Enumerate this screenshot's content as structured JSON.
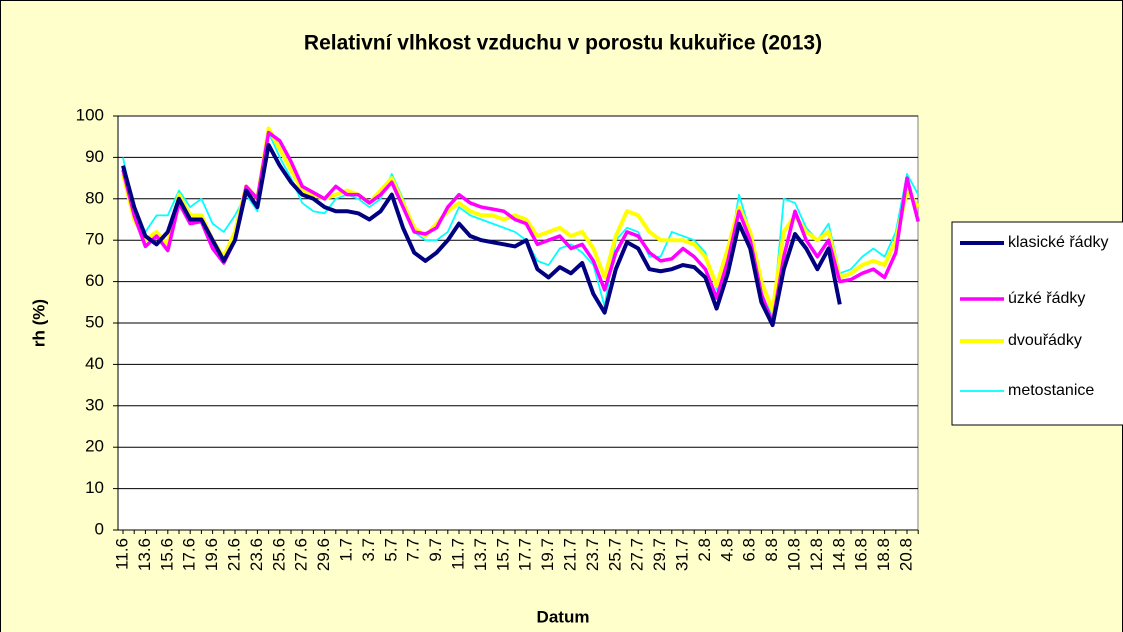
{
  "chart_data": {
    "type": "line",
    "title": "Relativní vlhkost vzduchu v porostu kukuřice (2013)",
    "x_label": "Datum",
    "y_label": "rh (%)",
    "categories": [
      "11.6",
      null,
      "13.6",
      null,
      "15.6",
      null,
      "17.6",
      null,
      "19.6",
      null,
      "21.6",
      null,
      "23.6",
      null,
      "25.6",
      null,
      "27.6",
      null,
      "29.6",
      null,
      "1.7",
      null,
      "3.7",
      null,
      "5.7",
      null,
      "7.7",
      null,
      "9.7",
      null,
      "11.7",
      null,
      "13.7",
      null,
      "15.7",
      null,
      "17.7",
      null,
      "19.7",
      null,
      "21.7",
      null,
      "23.7",
      null,
      "25.7",
      null,
      "27.7",
      null,
      "29.7",
      null,
      "31.7",
      null,
      "2.8",
      null,
      "4.8",
      null,
      "6.8",
      null,
      "8.8",
      null,
      "10.8",
      null,
      "12.8",
      null,
      "14.8",
      null,
      "16.8",
      null,
      "18.8",
      null,
      "20.8",
      null
    ],
    "series": [
      {
        "name": "klasické řádky",
        "color": "#000080",
        "values": [
          88,
          78,
          71,
          69,
          72,
          80,
          75,
          75,
          70,
          65,
          70,
          82,
          78,
          93,
          88,
          84,
          81,
          80,
          78,
          77,
          77,
          76.5,
          75,
          77,
          81,
          73,
          67,
          65,
          67,
          70,
          74,
          71,
          70,
          69.5,
          69,
          68.5,
          70,
          63,
          61,
          63.5,
          62,
          64.5,
          57,
          52.5,
          63,
          69.5,
          68,
          63,
          62.5,
          63,
          64,
          63.5,
          61,
          53.5,
          62,
          74,
          68,
          55,
          49.5,
          63,
          71.5,
          68,
          63,
          68,
          54.5,
          null,
          null,
          null,
          null,
          null,
          null,
          null
        ]
      },
      {
        "name": "úzké řádky",
        "color": "#ff00ff",
        "values": [
          87,
          76,
          68.5,
          71,
          67.5,
          79,
          74,
          74.5,
          68,
          64.5,
          70,
          83,
          80,
          96,
          94,
          89,
          83,
          81.5,
          80,
          83,
          81,
          81,
          79,
          81,
          84,
          78,
          72,
          71.5,
          73,
          78,
          81,
          79,
          78,
          77.5,
          77,
          75,
          74,
          69,
          70,
          71,
          68,
          69,
          65,
          58,
          67,
          72,
          71,
          67,
          65,
          65.5,
          68,
          66,
          63,
          56,
          65,
          77,
          70,
          57,
          50,
          66,
          77,
          70,
          66,
          70,
          60,
          60.5,
          62,
          63,
          61,
          67,
          85,
          74.5
        ]
      },
      {
        "name": "dvouřádky",
        "color": "#ffff00",
        "values": [
          86,
          75,
          70,
          72,
          69,
          81,
          76,
          76,
          70,
          66,
          72,
          83,
          80,
          97,
          92,
          87,
          82,
          81,
          80,
          81,
          82,
          81,
          79,
          82,
          85,
          79,
          73,
          71,
          74,
          77,
          79,
          77,
          76,
          76,
          75,
          76,
          75,
          71,
          72,
          73,
          71,
          72,
          68,
          61,
          71,
          77,
          76,
          72,
          70,
          70,
          70,
          69,
          66,
          59,
          68,
          78,
          72,
          60,
          53,
          72,
          76,
          72,
          70,
          72,
          61,
          62,
          64,
          65,
          64,
          70,
          82,
          78
        ]
      },
      {
        "name": "metostanice",
        "color": "#00ffff",
        "values": [
          90,
          77,
          72,
          76,
          76,
          82,
          78,
          80,
          74,
          72,
          76,
          81,
          77,
          96,
          90,
          85,
          79,
          77,
          76.5,
          80,
          81,
          80,
          78,
          80,
          86,
          80,
          72,
          70,
          70,
          72,
          78,
          76,
          75,
          74,
          73,
          72,
          70,
          65,
          64,
          68,
          69,
          67,
          64,
          54,
          70,
          73,
          72,
          66,
          66,
          72,
          71,
          70,
          67,
          58,
          65,
          81,
          72,
          61,
          51,
          80,
          79,
          73,
          70,
          74,
          62,
          63,
          66,
          68,
          66,
          72,
          86,
          81
        ]
      }
    ],
    "ylim": [
      0,
      100
    ],
    "yticks": [
      0,
      10,
      20,
      30,
      40,
      50,
      60,
      70,
      80,
      90,
      100
    ],
    "grid": true,
    "legend": "right"
  }
}
